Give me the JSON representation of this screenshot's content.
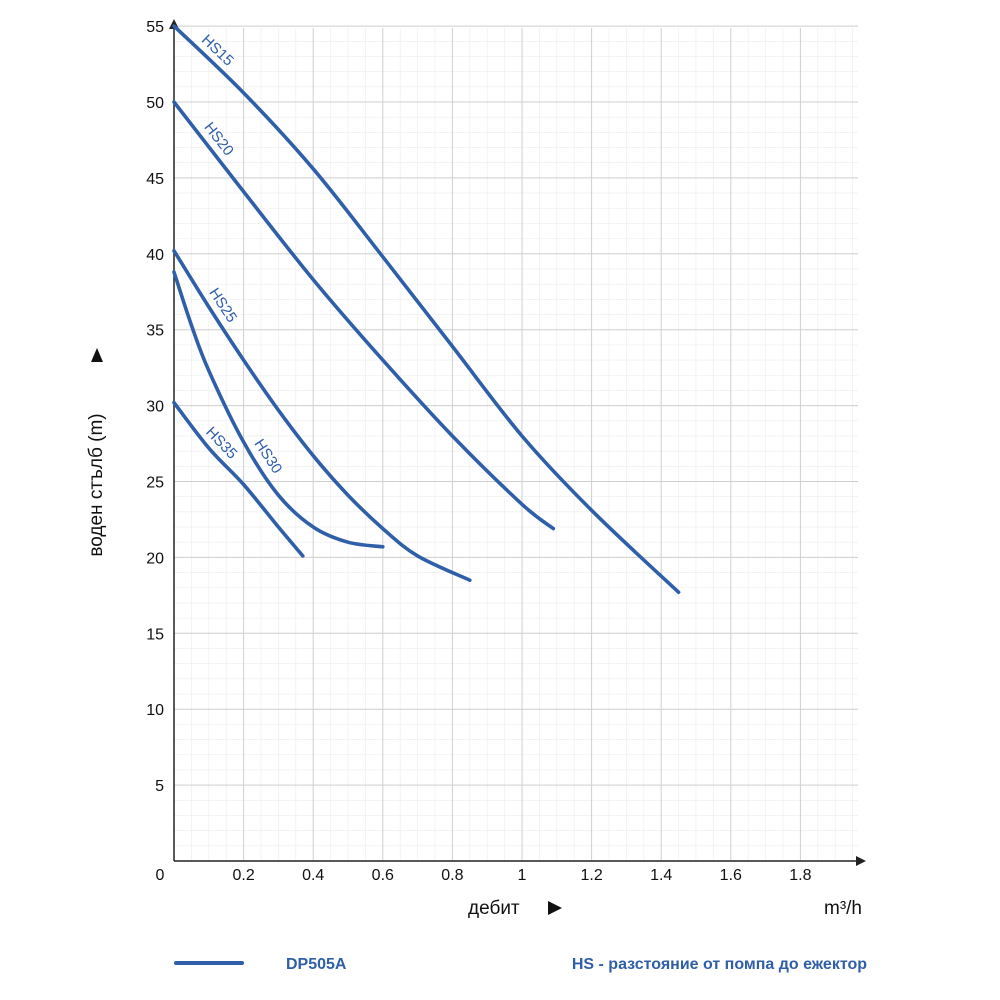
{
  "chart_data": {
    "type": "line",
    "xlabel": "дебит",
    "x_unit": "m³/h",
    "ylabel": "воден стълб (m)",
    "xlim": [
      0,
      1.98
    ],
    "ylim": [
      0,
      56
    ],
    "x_ticks": [
      "0",
      "0.2",
      "0.4",
      "0.6",
      "0.8",
      "1",
      "1.2",
      "1.4",
      "1.6",
      "1.8"
    ],
    "x_tick_values": [
      0,
      0.2,
      0.4,
      0.6,
      0.8,
      1,
      1.2,
      1.4,
      1.6,
      1.8
    ],
    "y_ticks": [
      "5",
      "10",
      "15",
      "20",
      "25",
      "30",
      "35",
      "40",
      "45",
      "50",
      "55"
    ],
    "y_tick_values": [
      5,
      10,
      15,
      20,
      25,
      30,
      35,
      40,
      45,
      50,
      55
    ],
    "grid": true,
    "series": [
      {
        "name": "HS15",
        "x": [
          0,
          0.2,
          0.4,
          0.6,
          0.8,
          1.0,
          1.2,
          1.45
        ],
        "y": [
          55,
          50.6,
          45.6,
          39.8,
          33.9,
          28.0,
          23.1,
          17.7
        ]
      },
      {
        "name": "HS20",
        "x": [
          0,
          0.2,
          0.4,
          0.6,
          0.8,
          1.0,
          1.09
        ],
        "y": [
          50,
          44.1,
          38.3,
          33.0,
          28.0,
          23.5,
          21.9
        ]
      },
      {
        "name": "HS25",
        "x": [
          0,
          0.1,
          0.2,
          0.3,
          0.4,
          0.5,
          0.6,
          0.7,
          0.85
        ],
        "y": [
          40.2,
          36.5,
          33.0,
          29.7,
          26.7,
          24.1,
          21.9,
          20.1,
          18.5
        ]
      },
      {
        "name": "HS30",
        "x": [
          0,
          0.05,
          0.1,
          0.2,
          0.3,
          0.4,
          0.5,
          0.6
        ],
        "y": [
          38.8,
          35.3,
          32.3,
          27.6,
          24.1,
          22.0,
          21.0,
          20.7
        ]
      },
      {
        "name": "HS35",
        "x": [
          0,
          0.1,
          0.2,
          0.3,
          0.37
        ],
        "y": [
          30.2,
          27.2,
          24.8,
          22.0,
          20.1
        ]
      }
    ],
    "series_color": "#2f5fa8",
    "legend": {
      "entry": "DP505A",
      "note": "HS - разстояние от помпа до ежектор"
    }
  }
}
